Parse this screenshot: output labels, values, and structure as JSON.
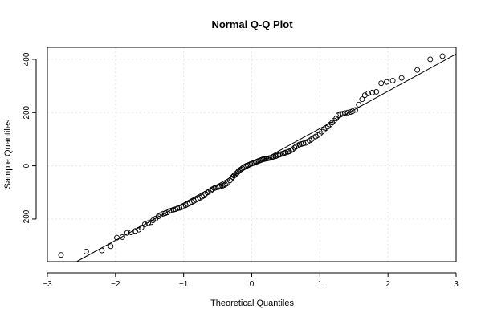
{
  "chart_data": {
    "type": "scatter",
    "title": "Normal Q-Q Plot",
    "xlabel": "Theoretical Quantiles",
    "ylabel": "Sample Quantiles",
    "xlim": [
      -3,
      3
    ],
    "ylim": [
      -360,
      445
    ],
    "x_ticks": [
      -3,
      -2,
      -1,
      0,
      1,
      2,
      3
    ],
    "y_ticks": [
      -200,
      0,
      200,
      400
    ],
    "x_tick_labels": [
      "−3",
      "−2",
      "−1",
      "0",
      "1",
      "2",
      "3"
    ],
    "y_tick_labels": [
      "−200",
      "0",
      "200",
      "400"
    ],
    "grid": true,
    "reference_line": {
      "intercept": 0,
      "slope": 140
    },
    "points": [
      [
        -2.8,
        -335
      ],
      [
        -2.43,
        -322
      ],
      [
        -2.2,
        -318
      ],
      [
        -2.07,
        -302
      ],
      [
        -1.98,
        -270
      ],
      [
        -1.9,
        -268
      ],
      [
        -1.83,
        -252
      ],
      [
        -1.77,
        -250
      ],
      [
        -1.71,
        -245
      ],
      [
        -1.66,
        -240
      ],
      [
        -1.62,
        -232
      ],
      [
        -1.57,
        -220
      ],
      [
        -1.52,
        -215
      ],
      [
        -1.48,
        -212
      ],
      [
        -1.45,
        -205
      ],
      [
        -1.41,
        -198
      ],
      [
        -1.37,
        -190
      ],
      [
        -1.34,
        -185
      ],
      [
        -1.3,
        -180
      ],
      [
        -1.27,
        -178
      ],
      [
        -1.24,
        -175
      ],
      [
        -1.21,
        -170
      ],
      [
        -1.18,
        -168
      ],
      [
        -1.15,
        -165
      ],
      [
        -1.12,
        -163
      ],
      [
        -1.09,
        -160
      ],
      [
        -1.06,
        -158
      ],
      [
        -1.03,
        -156
      ],
      [
        -1.0,
        -153
      ],
      [
        -0.97,
        -148
      ],
      [
        -0.94,
        -144
      ],
      [
        -0.91,
        -140
      ],
      [
        -0.88,
        -136
      ],
      [
        -0.85,
        -132
      ],
      [
        -0.82,
        -128
      ],
      [
        -0.79,
        -124
      ],
      [
        -0.76,
        -120
      ],
      [
        -0.73,
        -116
      ],
      [
        -0.7,
        -112
      ],
      [
        -0.68,
        -105
      ],
      [
        -0.65,
        -100
      ],
      [
        -0.63,
        -97
      ],
      [
        -0.6,
        -93
      ],
      [
        -0.58,
        -88
      ],
      [
        -0.55,
        -84
      ],
      [
        -0.53,
        -82
      ],
      [
        -0.5,
        -80
      ],
      [
        -0.48,
        -79
      ],
      [
        -0.46,
        -77
      ],
      [
        -0.43,
        -75
      ],
      [
        -0.41,
        -73
      ],
      [
        -0.39,
        -70
      ],
      [
        -0.37,
        -67
      ],
      [
        -0.35,
        -64
      ],
      [
        -0.32,
        -55
      ],
      [
        -0.3,
        -48
      ],
      [
        -0.28,
        -42
      ],
      [
        -0.26,
        -37
      ],
      [
        -0.24,
        -32
      ],
      [
        -0.22,
        -28
      ],
      [
        -0.2,
        -22
      ],
      [
        -0.18,
        -17
      ],
      [
        -0.16,
        -14
      ],
      [
        -0.14,
        -10
      ],
      [
        -0.12,
        -6
      ],
      [
        -0.1,
        -3
      ],
      [
        -0.08,
        0
      ],
      [
        -0.06,
        2
      ],
      [
        -0.04,
        4
      ],
      [
        -0.02,
        6
      ],
      [
        0.0,
        8
      ],
      [
        0.02,
        10
      ],
      [
        0.04,
        12
      ],
      [
        0.06,
        14
      ],
      [
        0.08,
        16
      ],
      [
        0.1,
        18
      ],
      [
        0.12,
        20
      ],
      [
        0.14,
        22
      ],
      [
        0.16,
        24
      ],
      [
        0.18,
        25
      ],
      [
        0.2,
        26
      ],
      [
        0.22,
        27
      ],
      [
        0.24,
        28
      ],
      [
        0.26,
        29
      ],
      [
        0.28,
        30
      ],
      [
        0.3,
        32
      ],
      [
        0.32,
        34
      ],
      [
        0.35,
        36
      ],
      [
        0.37,
        38
      ],
      [
        0.39,
        40
      ],
      [
        0.41,
        42
      ],
      [
        0.43,
        44
      ],
      [
        0.46,
        46
      ],
      [
        0.48,
        48
      ],
      [
        0.5,
        50
      ],
      [
        0.53,
        52
      ],
      [
        0.55,
        54
      ],
      [
        0.58,
        58
      ],
      [
        0.6,
        62
      ],
      [
        0.63,
        68
      ],
      [
        0.65,
        72
      ],
      [
        0.68,
        76
      ],
      [
        0.7,
        80
      ],
      [
        0.73,
        82
      ],
      [
        0.76,
        84
      ],
      [
        0.79,
        86
      ],
      [
        0.82,
        90
      ],
      [
        0.85,
        95
      ],
      [
        0.88,
        100
      ],
      [
        0.91,
        105
      ],
      [
        0.94,
        110
      ],
      [
        0.97,
        115
      ],
      [
        1.0,
        120
      ],
      [
        1.03,
        128
      ],
      [
        1.06,
        135
      ],
      [
        1.09,
        142
      ],
      [
        1.12,
        148
      ],
      [
        1.15,
        155
      ],
      [
        1.18,
        162
      ],
      [
        1.21,
        170
      ],
      [
        1.24,
        178
      ],
      [
        1.27,
        190
      ],
      [
        1.3,
        195
      ],
      [
        1.34,
        196
      ],
      [
        1.37,
        198
      ],
      [
        1.41,
        200
      ],
      [
        1.45,
        202
      ],
      [
        1.48,
        205
      ],
      [
        1.52,
        210
      ],
      [
        1.57,
        230
      ],
      [
        1.62,
        250
      ],
      [
        1.66,
        265
      ],
      [
        1.71,
        272
      ],
      [
        1.77,
        275
      ],
      [
        1.83,
        278
      ],
      [
        1.9,
        310
      ],
      [
        1.98,
        315
      ],
      [
        2.07,
        320
      ],
      [
        2.2,
        330
      ],
      [
        2.43,
        360
      ],
      [
        2.62,
        400
      ],
      [
        2.8,
        412
      ]
    ]
  }
}
